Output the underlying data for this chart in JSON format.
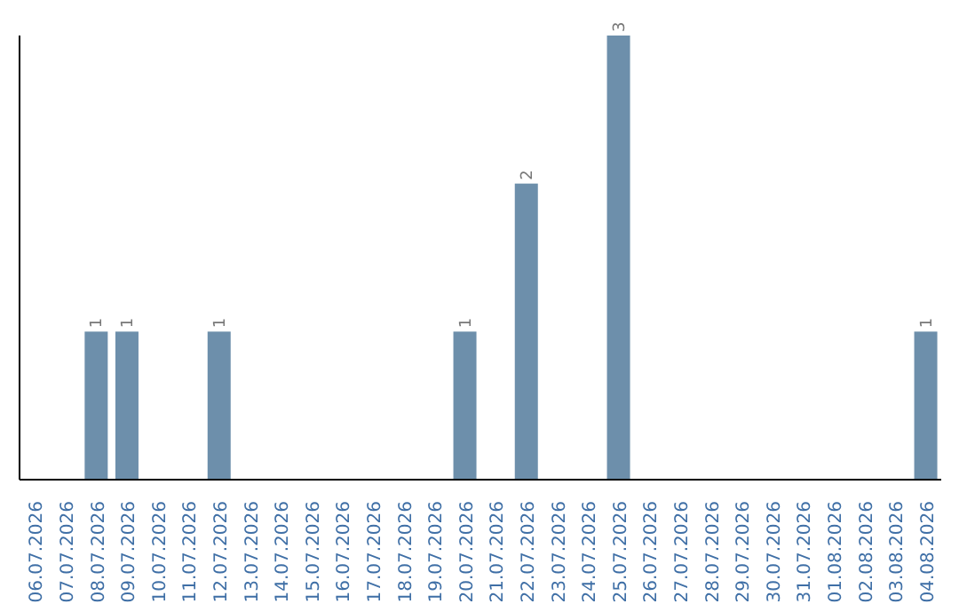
{
  "chart_data": {
    "type": "bar",
    "categories": [
      "06.07.2026",
      "07.07.2026",
      "08.07.2026",
      "09.07.2026",
      "10.07.2026",
      "11.07.2026",
      "12.07.2026",
      "13.07.2026",
      "14.07.2026",
      "15.07.2026",
      "16.07.2026",
      "17.07.2026",
      "18.07.2026",
      "19.07.2026",
      "20.07.2026",
      "21.07.2026",
      "22.07.2026",
      "23.07.2026",
      "24.07.2026",
      "25.07.2026",
      "26.07.2026",
      "27.07.2026",
      "28.07.2026",
      "29.07.2026",
      "30.07.2026",
      "31.07.2026",
      "01.08.2026",
      "02.08.2026",
      "03.08.2026",
      "04.08.2026"
    ],
    "values": [
      0,
      0,
      1,
      1,
      0,
      0,
      1,
      0,
      0,
      0,
      0,
      0,
      0,
      0,
      1,
      0,
      2,
      0,
      0,
      3,
      0,
      0,
      0,
      0,
      0,
      0,
      0,
      0,
      0,
      1
    ],
    "value_labels": [
      null,
      null,
      "1",
      "1",
      null,
      null,
      "1",
      null,
      null,
      null,
      null,
      null,
      null,
      null,
      "1",
      null,
      "2",
      null,
      null,
      "3",
      null,
      null,
      null,
      null,
      null,
      null,
      null,
      null,
      null,
      "1"
    ],
    "color": "#6d8fab",
    "grid": false,
    "legend": false
  }
}
